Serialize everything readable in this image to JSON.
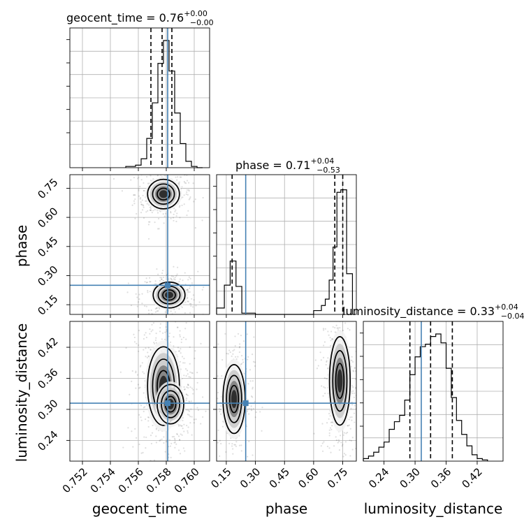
{
  "chart_data": {
    "type": "corner",
    "parameters": [
      "geocent_time",
      "phase",
      "luminosity_distance"
    ],
    "axis_labels": {
      "geocent_time": "geocent_time",
      "phase": "phase",
      "luminosity_distance": "luminosity_distance"
    },
    "titles": {
      "geocent_time": {
        "prefix": "geocent_time = 0.76",
        "plus": "+0.00",
        "minus": "−0.00"
      },
      "phase": {
        "prefix": "phase = 0.71",
        "plus": "+0.04",
        "minus": "−0.53"
      },
      "luminosity_distance": {
        "prefix": "luminosity_distance = 0.33",
        "plus": "+0.04",
        "minus": "−0.04"
      }
    },
    "ranges": {
      "geocent_time": [
        0.7511,
        0.7611
      ],
      "phase": [
        0.1,
        0.82
      ],
      "luminosity_distance": [
        0.2,
        0.47
      ]
    },
    "ticks": {
      "geocent_time": [
        0.752,
        0.754,
        0.756,
        0.758,
        0.76
      ],
      "phase": [
        0.15,
        0.3,
        0.45,
        0.6,
        0.75
      ],
      "luminosity_distance": [
        0.24,
        0.3,
        0.36,
        0.42
      ]
    },
    "tick_labels": {
      "geocent_time": [
        "0.752",
        "0.754",
        "0.756",
        "0.758",
        "0.760"
      ],
      "phase": [
        "0.15",
        "0.30",
        "0.45",
        "0.60",
        "0.75"
      ],
      "luminosity_distance": [
        "0.24",
        "0.30",
        "0.36",
        "0.42"
      ]
    },
    "truths": {
      "geocent_time": 0.7581,
      "phase": 0.25,
      "luminosity_distance": 0.312
    },
    "quantiles": {
      "geocent_time": [
        0.7569,
        0.7577,
        0.7584
      ],
      "phase": [
        0.18,
        0.709,
        0.75
      ],
      "luminosity_distance": [
        0.29,
        0.33,
        0.372
      ]
    },
    "histograms": {
      "geocent_time": {
        "edges": [
          0.7551,
          0.7558,
          0.7562,
          0.7566,
          0.757,
          0.7574,
          0.7578,
          0.7582,
          0.7586,
          0.759,
          0.7594,
          0.7598,
          0.7602,
          0.7606
        ],
        "counts": [
          0.01,
          0.02,
          0.07,
          0.23,
          0.51,
          0.82,
          1.0,
          0.76,
          0.43,
          0.19,
          0.05,
          0.01,
          0.0
        ]
      },
      "phase": {
        "edges": [
          0.1,
          0.14,
          0.17,
          0.2,
          0.23,
          0.3,
          0.6,
          0.64,
          0.66,
          0.68,
          0.7,
          0.72,
          0.74,
          0.77,
          0.8
        ],
        "counts": [
          0.05,
          0.23,
          0.42,
          0.22,
          0.01,
          0.0,
          0.03,
          0.07,
          0.12,
          0.27,
          0.53,
          0.96,
          0.98,
          0.32
        ]
      },
      "luminosity_distance": {
        "edges": [
          0.2,
          0.21,
          0.22,
          0.23,
          0.24,
          0.25,
          0.26,
          0.27,
          0.28,
          0.29,
          0.3,
          0.31,
          0.32,
          0.33,
          0.34,
          0.35,
          0.36,
          0.37,
          0.38,
          0.39,
          0.4,
          0.41,
          0.42,
          0.43,
          0.44
        ],
        "counts": [
          0.02,
          0.04,
          0.07,
          0.11,
          0.15,
          0.25,
          0.31,
          0.36,
          0.48,
          0.68,
          0.82,
          0.9,
          0.92,
          0.98,
          1.0,
          0.93,
          0.73,
          0.5,
          0.32,
          0.21,
          0.12,
          0.05,
          0.02,
          0.01
        ]
      }
    },
    "posterior_modes": {
      "geocent_time_vs_phase": [
        {
          "center": [
            0.7578,
            0.72
          ],
          "spread": [
            0.0006,
            0.04
          ],
          "weight": 0.57
        },
        {
          "center": [
            0.7582,
            0.2
          ],
          "spread": [
            0.0006,
            0.035
          ],
          "weight": 0.43
        }
      ],
      "geocent_time_vs_luminosity_distance": [
        {
          "center": [
            0.7578,
            0.345
          ],
          "spread": [
            0.0006,
            0.04
          ],
          "weight": 0.7
        },
        {
          "center": [
            0.7583,
            0.31
          ],
          "spread": [
            0.0005,
            0.02
          ],
          "weight": 0.3
        }
      ],
      "phase_vs_luminosity_distance": [
        {
          "center": [
            0.19,
            0.32
          ],
          "spread": [
            0.03,
            0.035
          ],
          "weight": 0.4
        },
        {
          "center": [
            0.735,
            0.355
          ],
          "spread": [
            0.028,
            0.045
          ],
          "weight": 0.6
        }
      ]
    },
    "grid": true,
    "line_colors": {
      "truth": "#4682b4",
      "contours": "#000000",
      "quantiles": "#000000"
    }
  }
}
